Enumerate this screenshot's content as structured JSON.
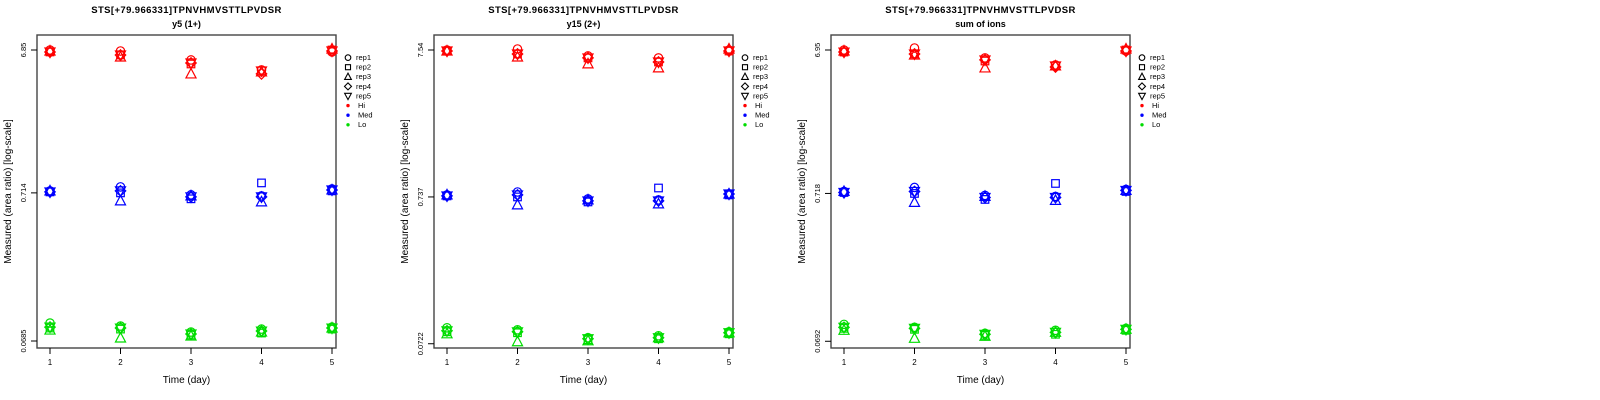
{
  "figure": {
    "background": "#FFFFFF",
    "frame_color": "#444444",
    "text_color": "#000000"
  },
  "shared": {
    "xlabel": "Time (day)",
    "ylabel": "Measured (area ratio) [log-scale]",
    "x_tick_labels": [
      "1",
      "2",
      "3",
      "4",
      "5"
    ],
    "legend": {
      "reps": [
        {
          "label": "rep1",
          "symbol": "circle"
        },
        {
          "label": "rep2",
          "symbol": "square"
        },
        {
          "label": "rep3",
          "symbol": "triangle-up"
        },
        {
          "label": "rep4",
          "symbol": "diamond"
        },
        {
          "label": "rep5",
          "symbol": "triangle-down"
        }
      ],
      "levels": [
        {
          "label": "Hi",
          "color": "#FF0000"
        },
        {
          "label": "Med",
          "color": "#0000FF"
        },
        {
          "label": "Lo",
          "color": "#00DC00"
        }
      ]
    }
  },
  "chart_data": [
    {
      "type": "scatter",
      "title": "STS[+79.966331]TPNVHMVSTTLPVDSR",
      "subtitle": "y5 (1+)",
      "xlabel": "Time (day)",
      "ylabel": "Measured (area ratio) [log-scale]",
      "x": [
        1,
        2,
        3,
        4,
        5
      ],
      "y_scale": "log",
      "grid": false,
      "y_ticks": [
        {
          "label": "6.85",
          "value": 6.85
        },
        {
          "label": "0.714",
          "value": 0.714
        },
        {
          "label": "0.0685",
          "value": 0.0685
        }
      ],
      "groups": [
        {
          "name": "Hi",
          "color": "#FF0000",
          "series": [
            {
              "name": "rep1",
              "symbol": "circle",
              "values": [
                6.85,
                6.74,
                5.85,
                5.0,
                6.64
              ]
            },
            {
              "name": "rep2",
              "symbol": "square",
              "values": [
                6.64,
                6.33,
                5.49,
                4.92,
                6.85
              ]
            },
            {
              "name": "rep3",
              "symbol": "triangle-up",
              "values": [
                6.74,
                6.13,
                4.69,
                4.84,
                6.96
              ]
            },
            {
              "name": "rep4",
              "symbol": "diamond",
              "values": [
                6.64,
                6.33,
                5.58,
                4.69,
                6.74
              ]
            },
            {
              "name": "rep5",
              "symbol": "triangle-down",
              "values": [
                6.64,
                6.33,
                5.58,
                4.92,
                6.74
              ]
            }
          ]
        },
        {
          "name": "Med",
          "color": "#0000FF",
          "series": [
            {
              "name": "rep1",
              "symbol": "circle",
              "values": [
                0.737,
                0.785,
                0.692,
                0.681,
                0.76
              ]
            },
            {
              "name": "rep2",
              "symbol": "square",
              "values": [
                0.725,
                0.714,
                0.65,
                0.836,
                0.737
              ]
            },
            {
              "name": "rep3",
              "symbol": "triangle-up",
              "values": [
                0.737,
                0.629,
                0.681,
                0.619,
                0.748
              ]
            },
            {
              "name": "rep4",
              "symbol": "diamond",
              "values": [
                0.725,
                0.737,
                0.67,
                0.67,
                0.748
              ]
            },
            {
              "name": "rep5",
              "symbol": "triangle-down",
              "values": [
                0.725,
                0.737,
                0.67,
                0.67,
                0.748
              ]
            }
          ]
        },
        {
          "name": "Lo",
          "color": "#00DC00",
          "series": [
            {
              "name": "rep1",
              "symbol": "circle",
              "values": [
                0.091,
                0.0868,
                0.0789,
                0.0827,
                0.0854
              ]
            },
            {
              "name": "rep2",
              "symbol": "square",
              "values": [
                0.0841,
                0.0827,
                0.0753,
                0.0777,
                0.0827
              ]
            },
            {
              "name": "rep3",
              "symbol": "triangle-up",
              "values": [
                0.0814,
                0.0718,
                0.0741,
                0.0789,
                0.0841
              ]
            },
            {
              "name": "rep4",
              "symbol": "diamond",
              "values": [
                0.0854,
                0.0841,
                0.0765,
                0.0802,
                0.0841
              ]
            },
            {
              "name": "rep5",
              "symbol": "triangle-down",
              "values": [
                0.0854,
                0.0841,
                0.0765,
                0.0802,
                0.0841
              ]
            }
          ]
        }
      ]
    },
    {
      "type": "scatter",
      "title": "STS[+79.966331]TPNVHMVSTTLPVDSR",
      "subtitle": "y15 (2+)",
      "xlabel": "Time (day)",
      "ylabel": "Measured (area ratio) [log-scale]",
      "x": [
        1,
        2,
        3,
        4,
        5
      ],
      "y_scale": "log",
      "grid": false,
      "y_ticks": [
        {
          "label": "7.54",
          "value": 7.54
        },
        {
          "label": "0.737",
          "value": 0.737
        },
        {
          "label": "0.0722",
          "value": 0.0722
        }
      ],
      "groups": [
        {
          "name": "Hi",
          "color": "#FF0000",
          "series": [
            {
              "name": "rep1",
              "symbol": "circle",
              "values": [
                7.54,
                7.66,
                6.86,
                6.65,
                7.54
              ]
            },
            {
              "name": "rep2",
              "symbol": "square",
              "values": [
                7.42,
                7.08,
                6.65,
                6.24,
                7.42
              ]
            },
            {
              "name": "rep3",
              "symbol": "triangle-up",
              "values": [
                7.42,
                6.75,
                6.05,
                5.68,
                7.66
              ]
            },
            {
              "name": "rep4",
              "symbol": "diamond",
              "values": [
                7.42,
                7.08,
                6.65,
                6.24,
                7.42
              ]
            },
            {
              "name": "rep5",
              "symbol": "triangle-down",
              "values": [
                7.42,
                7.08,
                6.65,
                6.24,
                7.42
              ]
            }
          ]
        },
        {
          "name": "Med",
          "color": "#0000FF",
          "series": [
            {
              "name": "rep1",
              "symbol": "circle",
              "values": [
                0.761,
                0.797,
                0.714,
                0.703,
                0.772
              ]
            },
            {
              "name": "rep2",
              "symbol": "square",
              "values": [
                0.749,
                0.737,
                0.681,
                0.849,
                0.761
              ]
            },
            {
              "name": "rep3",
              "symbol": "triangle-up",
              "values": [
                0.761,
                0.65,
                0.703,
                0.66,
                0.772
              ]
            },
            {
              "name": "rep4",
              "symbol": "diamond",
              "values": [
                0.749,
                0.761,
                0.692,
                0.692,
                0.772
              ]
            },
            {
              "name": "rep5",
              "symbol": "triangle-down",
              "values": [
                0.749,
                0.761,
                0.692,
                0.692,
                0.772
              ]
            }
          ]
        },
        {
          "name": "Lo",
          "color": "#00DC00",
          "series": [
            {
              "name": "rep1",
              "symbol": "circle",
              "values": [
                0.0929,
                0.09,
                0.0794,
                0.0819,
                0.0872
              ]
            },
            {
              "name": "rep2",
              "symbol": "square",
              "values": [
                0.0872,
                0.0859,
                0.0769,
                0.0781,
                0.0845
              ]
            },
            {
              "name": "rep3",
              "symbol": "triangle-up",
              "values": [
                0.0845,
                0.0745,
                0.0757,
                0.0794,
                0.0859
              ]
            },
            {
              "name": "rep4",
              "symbol": "diamond",
              "values": [
                0.0886,
                0.0872,
                0.0781,
                0.0794,
                0.0859
              ]
            },
            {
              "name": "rep5",
              "symbol": "triangle-down",
              "values": [
                0.0886,
                0.0872,
                0.0781,
                0.0794,
                0.0859
              ]
            }
          ]
        }
      ]
    },
    {
      "type": "scatter",
      "title": "STS[+79.966331]TPNVHMVSTTLPVDSR",
      "subtitle": "sum of ions",
      "xlabel": "Time (day)",
      "ylabel": "Measured (area ratio) [log-scale]",
      "x": [
        1,
        2,
        3,
        4,
        5
      ],
      "y_scale": "log",
      "grid": false,
      "y_ticks": [
        {
          "label": "6.95",
          "value": 6.95
        },
        {
          "label": "0.718",
          "value": 0.718
        },
        {
          "label": "0.0692",
          "value": 0.0692
        }
      ],
      "groups": [
        {
          "name": "Hi",
          "color": "#FF0000",
          "series": [
            {
              "name": "rep1",
              "symbol": "circle",
              "values": [
                6.95,
                7.17,
                6.13,
                5.49,
                6.84
              ]
            },
            {
              "name": "rep2",
              "symbol": "square",
              "values": [
                6.73,
                6.53,
                5.84,
                5.4,
                6.95
              ]
            },
            {
              "name": "rep3",
              "symbol": "triangle-up",
              "values": [
                6.84,
                6.42,
                5.23,
                5.4,
                7.06
              ]
            },
            {
              "name": "rep4",
              "symbol": "diamond",
              "values": [
                6.73,
                6.53,
                5.94,
                5.31,
                6.84
              ]
            },
            {
              "name": "rep5",
              "symbol": "triangle-down",
              "values": [
                6.73,
                6.53,
                5.94,
                5.4,
                6.84
              ]
            }
          ]
        },
        {
          "name": "Med",
          "color": "#0000FF",
          "series": [
            {
              "name": "rep1",
              "symbol": "circle",
              "values": [
                0.741,
                0.789,
                0.696,
                0.685,
                0.765
              ]
            },
            {
              "name": "rep2",
              "symbol": "square",
              "values": [
                0.729,
                0.718,
                0.653,
                0.841,
                0.741
              ]
            },
            {
              "name": "rep3",
              "symbol": "triangle-up",
              "values": [
                0.741,
                0.623,
                0.685,
                0.643,
                0.753
              ]
            },
            {
              "name": "rep4",
              "symbol": "diamond",
              "values": [
                0.729,
                0.741,
                0.674,
                0.674,
                0.753
              ]
            },
            {
              "name": "rep5",
              "symbol": "triangle-down",
              "values": [
                0.729,
                0.741,
                0.674,
                0.674,
                0.753
              ]
            }
          ]
        },
        {
          "name": "Lo",
          "color": "#00DC00",
          "series": [
            {
              "name": "rep1",
              "symbol": "circle",
              "values": [
                0.0904,
                0.0863,
                0.0785,
                0.0823,
                0.0849
              ]
            },
            {
              "name": "rep2",
              "symbol": "square",
              "values": [
                0.0849,
                0.0836,
                0.0761,
                0.0773,
                0.0823
              ]
            },
            {
              "name": "rep3",
              "symbol": "triangle-up",
              "values": [
                0.0823,
                0.0725,
                0.0749,
                0.0797,
                0.0836
              ]
            },
            {
              "name": "rep4",
              "symbol": "diamond",
              "values": [
                0.0863,
                0.0849,
                0.0773,
                0.0797,
                0.0836
              ]
            },
            {
              "name": "rep5",
              "symbol": "triangle-down",
              "values": [
                0.0863,
                0.0849,
                0.0773,
                0.0797,
                0.0836
              ]
            }
          ]
        }
      ]
    }
  ]
}
